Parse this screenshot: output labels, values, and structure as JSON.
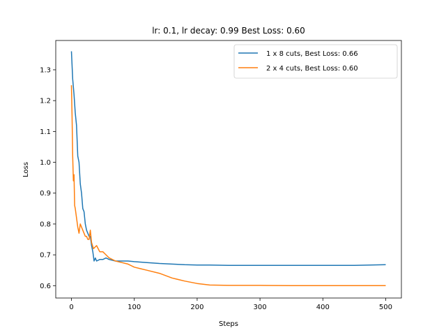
{
  "chart_data": {
    "type": "line",
    "title": "lr: 0.1, lr decay: 0.99 Best Loss: 0.60",
    "xlabel": "Steps",
    "ylabel": "Loss",
    "xlim": [
      -25,
      525
    ],
    "ylim": [
      0.56,
      1.395
    ],
    "xticks": [
      0,
      100,
      200,
      300,
      400,
      500
    ],
    "yticks": [
      0.6,
      0.7,
      0.8,
      0.9,
      1.0,
      1.1,
      1.2,
      1.3
    ],
    "ytick_labels": [
      "0.6",
      "0.7",
      "0.8",
      "0.9",
      "1.0",
      "1.1",
      "1.2",
      "1.3"
    ],
    "grid": false,
    "legend_position": "top-right",
    "series": [
      {
        "name": "1 x 8 cuts, Best Loss: 0.66",
        "color": "#1f77b4",
        "x": [
          0,
          2,
          4,
          6,
          8,
          10,
          12,
          14,
          16,
          18,
          20,
          22,
          24,
          26,
          28,
          30,
          32,
          34,
          36,
          38,
          40,
          45,
          50,
          55,
          60,
          70,
          80,
          90,
          100,
          120,
          140,
          160,
          180,
          200,
          220,
          250,
          300,
          350,
          400,
          450,
          500
        ],
        "values": [
          1.36,
          1.27,
          1.22,
          1.16,
          1.12,
          1.02,
          1.0,
          0.93,
          0.9,
          0.85,
          0.84,
          0.8,
          0.78,
          0.77,
          0.76,
          0.76,
          0.73,
          0.71,
          0.68,
          0.69,
          0.68,
          0.685,
          0.685,
          0.69,
          0.685,
          0.68,
          0.68,
          0.68,
          0.678,
          0.675,
          0.672,
          0.67,
          0.668,
          0.667,
          0.667,
          0.666,
          0.666,
          0.666,
          0.666,
          0.666,
          0.668
        ]
      },
      {
        "name": "2 x 4 cuts, Best Loss: 0.60",
        "color": "#ff7f0e",
        "x": [
          0,
          1,
          2,
          3,
          4,
          5,
          6,
          8,
          10,
          12,
          14,
          16,
          18,
          20,
          22,
          24,
          26,
          28,
          30,
          32,
          35,
          40,
          45,
          50,
          55,
          60,
          70,
          80,
          90,
          100,
          110,
          120,
          140,
          160,
          180,
          200,
          220,
          250,
          300,
          350,
          400,
          450,
          500
        ],
        "values": [
          1.25,
          1.15,
          1.02,
          0.94,
          0.96,
          0.86,
          0.85,
          0.82,
          0.79,
          0.77,
          0.8,
          0.79,
          0.78,
          0.77,
          0.76,
          0.76,
          0.75,
          0.75,
          0.78,
          0.74,
          0.72,
          0.73,
          0.71,
          0.71,
          0.7,
          0.69,
          0.68,
          0.675,
          0.67,
          0.66,
          0.655,
          0.65,
          0.64,
          0.625,
          0.615,
          0.607,
          0.602,
          0.601,
          0.601,
          0.6,
          0.6,
          0.6,
          0.6
        ]
      }
    ]
  }
}
